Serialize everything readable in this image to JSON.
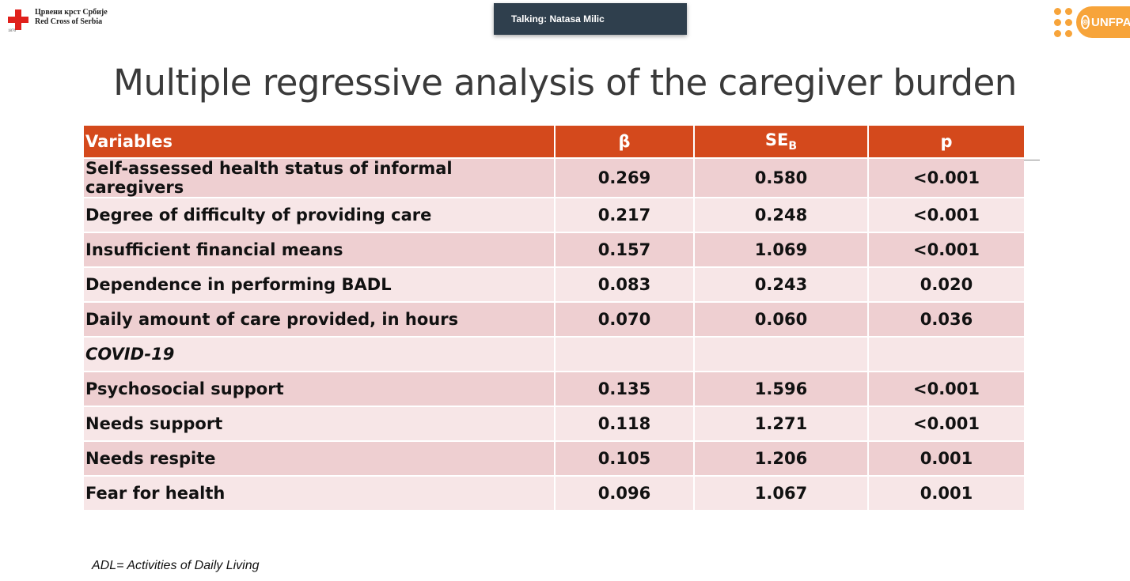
{
  "header": {
    "red_cross_line1": "Црвени крст Србије",
    "red_cross_line2": "Red Cross of Serbia",
    "red_cross_year": "1876",
    "talking": "Talking: Natasa Milic",
    "unfpa_label": "UNFPA"
  },
  "slide": {
    "title": "Multiple regressive analysis of the caregiver burden",
    "footnote": "ADL= Activities of Daily Living"
  },
  "table": {
    "headers": {
      "variables": "Variables",
      "beta": "β",
      "se_main": "SE",
      "se_sub": "B",
      "p": "p"
    },
    "rows": [
      {
        "variable": "Self-assessed health status of informal caregivers",
        "beta": "0.269",
        "se": "0.580",
        "p": "<0.001"
      },
      {
        "variable": "Degree of difficulty of providing care",
        "beta": "0.217",
        "se": "0.248",
        "p": "<0.001"
      },
      {
        "variable": "Insufficient financial means",
        "beta": "0.157",
        "se": "1.069",
        "p": "<0.001"
      },
      {
        "variable": "Dependence in performing BADL",
        "beta": "0.083",
        "se": "0.243",
        "p": "0.020"
      },
      {
        "variable": "Daily amount of care provided, in hours",
        "beta": "0.070",
        "se": "0.060",
        "p": "0.036"
      },
      {
        "variable": "COVID-19",
        "beta": "",
        "se": "",
        "p": ""
      },
      {
        "variable": "Psychosocial support",
        "beta": "0.135",
        "se": "1.596",
        "p": "<0.001"
      },
      {
        "variable": "Needs support",
        "beta": "0.118",
        "se": "1.271",
        "p": "<0.001"
      },
      {
        "variable": "Needs respite",
        "beta": "0.105",
        "se": "1.206",
        "p": "0.001"
      },
      {
        "variable": "Fear for health",
        "beta": "0.096",
        "se": "1.067",
        "p": "0.001"
      }
    ]
  },
  "colors": {
    "header_bg": "#d4491c",
    "row_dark": "#eecfd1",
    "row_light": "#f7e6e7",
    "talking_bg": "#2f3f4d",
    "unfpa_orange": "#f7a43a",
    "red_cross": "#e0201b"
  }
}
